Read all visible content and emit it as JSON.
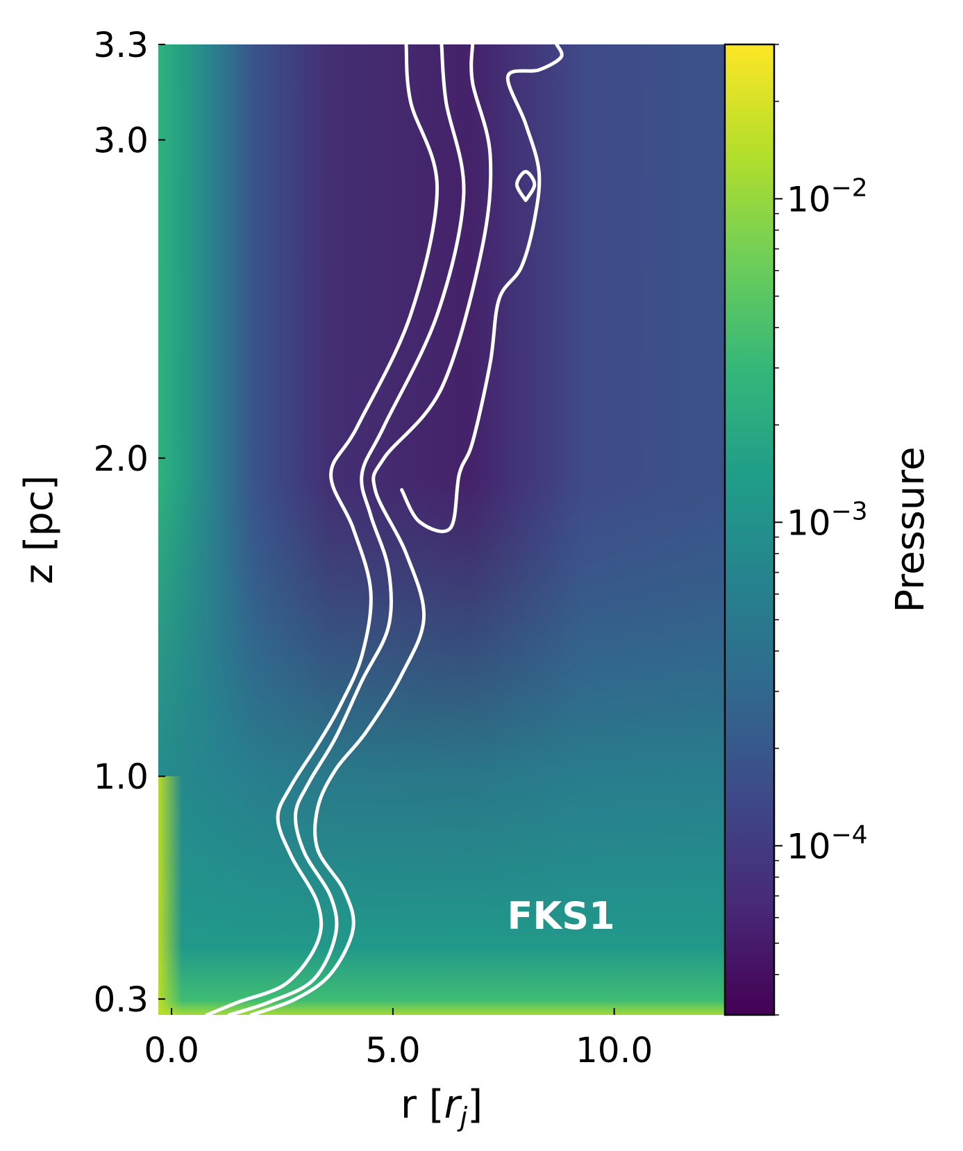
{
  "chart_data": {
    "type": "heatmap",
    "title": "",
    "xlabel": "r [r_j]",
    "ylabel": "z [pc]",
    "colorbar_label": "Pressure",
    "colormap": "viridis",
    "colormap_stops": [
      "#440154",
      "#482878",
      "#3e4989",
      "#31688e",
      "#26828e",
      "#1f9e89",
      "#35b779",
      "#6ece58",
      "#b5de2b",
      "#fde725"
    ],
    "colorbar_scale": "log",
    "colorbar_range": [
      3e-05,
      0.03
    ],
    "colorbar_ticks": [
      {
        "value": 0.01,
        "base": "10",
        "exp": "−2"
      },
      {
        "value": 0.001,
        "base": "10",
        "exp": "−3"
      },
      {
        "value": 0.0001,
        "base": "10",
        "exp": "−4"
      }
    ],
    "xlim": [
      -0.3,
      12.5
    ],
    "ylim": [
      0.25,
      3.3
    ],
    "xticks": [
      {
        "value": 0.0,
        "label": "0.0"
      },
      {
        "value": 5.0,
        "label": "5.0"
      },
      {
        "value": 10.0,
        "label": "10.0"
      }
    ],
    "yticks": [
      {
        "value": 0.3,
        "label": "0.3"
      },
      {
        "value": 1.0,
        "label": "1.0"
      },
      {
        "value": 2.0,
        "label": "2.0"
      },
      {
        "value": 3.0,
        "label": "3.0"
      },
      {
        "value": 3.3,
        "label": "3.3"
      }
    ],
    "annotation": "FKS1",
    "contour_color": "#ffffff",
    "contours": [
      {
        "points": [
          [
            0.8,
            0.25
          ],
          [
            1.5,
            0.29
          ],
          [
            2.6,
            0.35
          ],
          [
            3.3,
            0.48
          ],
          [
            3.3,
            0.6
          ],
          [
            2.7,
            0.75
          ],
          [
            2.4,
            0.87
          ],
          [
            2.7,
            0.97
          ],
          [
            3.3,
            1.1
          ],
          [
            3.8,
            1.22
          ],
          [
            4.3,
            1.38
          ],
          [
            4.5,
            1.58
          ],
          [
            4.1,
            1.78
          ],
          [
            3.6,
            1.95
          ],
          [
            4.2,
            2.1
          ],
          [
            5.4,
            2.45
          ],
          [
            6.0,
            2.85
          ],
          [
            5.4,
            3.12
          ],
          [
            5.3,
            3.3
          ]
        ]
      },
      {
        "points": [
          [
            1.3,
            0.25
          ],
          [
            2.2,
            0.29
          ],
          [
            3.2,
            0.36
          ],
          [
            3.7,
            0.5
          ],
          [
            3.6,
            0.62
          ],
          [
            3.0,
            0.76
          ],
          [
            2.8,
            0.88
          ],
          [
            3.1,
            0.98
          ],
          [
            3.7,
            1.12
          ],
          [
            4.3,
            1.3
          ],
          [
            4.9,
            1.47
          ],
          [
            4.9,
            1.65
          ],
          [
            4.5,
            1.82
          ],
          [
            4.3,
            1.95
          ],
          [
            4.8,
            2.1
          ],
          [
            6.0,
            2.45
          ],
          [
            6.6,
            2.83
          ],
          [
            6.2,
            3.12
          ],
          [
            6.1,
            3.3
          ]
        ]
      },
      {
        "points": [
          [
            1.8,
            0.25
          ],
          [
            2.8,
            0.3
          ],
          [
            3.6,
            0.38
          ],
          [
            4.1,
            0.52
          ],
          [
            3.9,
            0.64
          ],
          [
            3.3,
            0.77
          ],
          [
            3.3,
            0.9
          ],
          [
            3.7,
            1.02
          ],
          [
            4.4,
            1.14
          ],
          [
            5.2,
            1.32
          ],
          [
            5.7,
            1.5
          ],
          [
            5.3,
            1.7
          ],
          [
            4.6,
            1.9
          ],
          [
            4.8,
            2.0
          ],
          [
            6.1,
            2.22
          ],
          [
            7.0,
            2.65
          ],
          [
            7.2,
            2.95
          ],
          [
            6.8,
            3.18
          ],
          [
            6.8,
            3.3
          ]
        ]
      },
      {
        "points": [
          [
            5.2,
            1.9
          ],
          [
            5.6,
            1.8
          ],
          [
            6.3,
            1.78
          ],
          [
            6.5,
            1.95
          ],
          [
            6.8,
            2.05
          ],
          [
            7.2,
            2.3
          ],
          [
            7.4,
            2.5
          ],
          [
            7.9,
            2.6
          ],
          [
            8.2,
            2.75
          ],
          [
            8.3,
            2.9
          ],
          [
            8.0,
            3.05
          ],
          [
            7.6,
            3.2
          ],
          [
            8.3,
            3.22
          ],
          [
            8.8,
            3.26
          ],
          [
            8.7,
            3.3
          ]
        ]
      },
      {
        "points": [
          [
            8.0,
            2.81
          ],
          [
            8.2,
            2.86
          ],
          [
            8.0,
            2.9
          ],
          [
            7.8,
            2.86
          ],
          [
            8.0,
            2.81
          ]
        ],
        "closed": true
      }
    ]
  }
}
